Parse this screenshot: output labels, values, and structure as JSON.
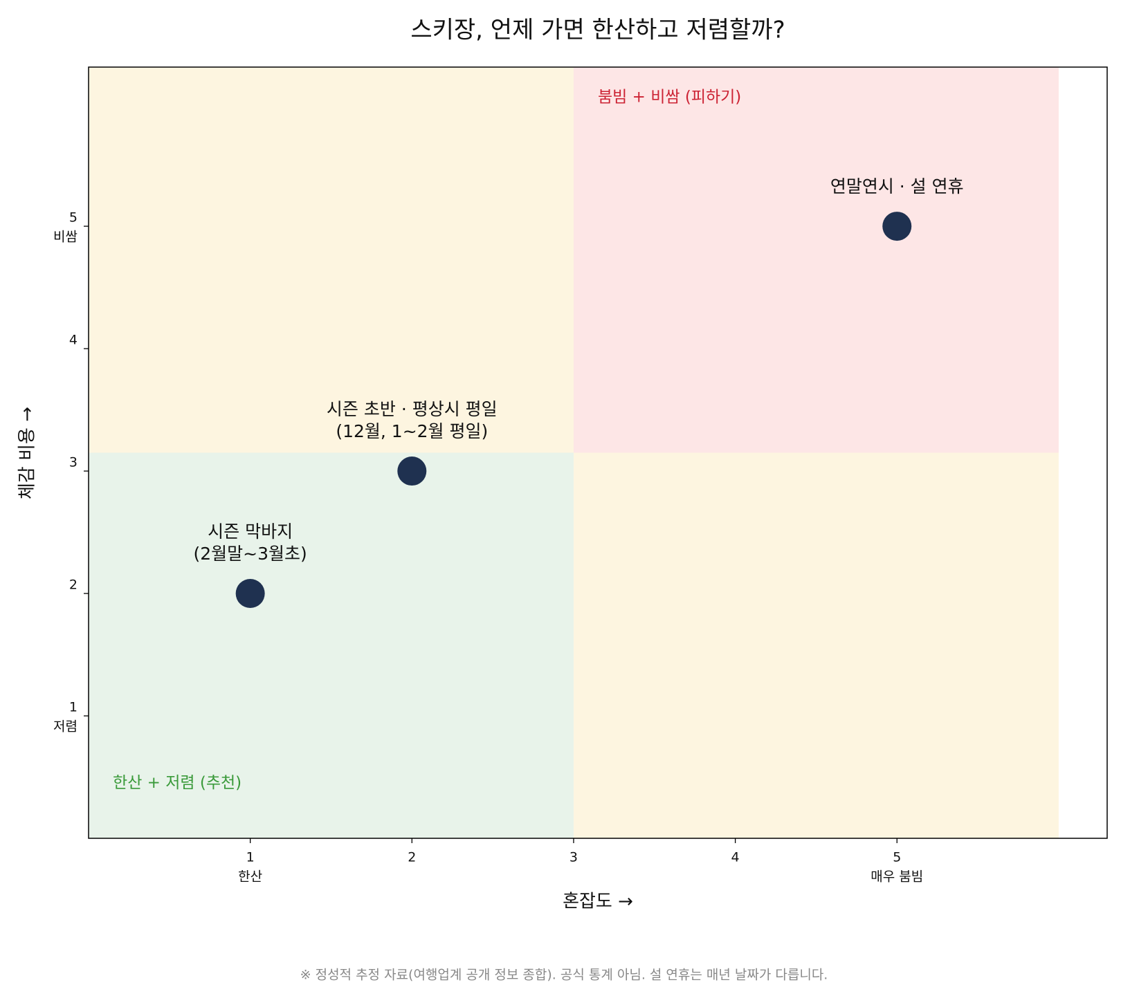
{
  "chart_data": {
    "type": "scatter",
    "title": "스키장, 언제 가면 한산하고 저렴할까?",
    "x_label": "혼잡도 →",
    "y_label": "체감 비용 →",
    "xlim": [
      0,
      6.3
    ],
    "ylim": [
      0,
      6.3
    ],
    "xticks": [
      1,
      2,
      3,
      4,
      5
    ],
    "yticks": [
      1,
      2,
      3,
      4,
      5
    ],
    "xtick_notes": [
      {
        "value": 1,
        "label": "한산"
      },
      {
        "value": 5,
        "label": "매우 붐빔"
      }
    ],
    "ytick_notes": [
      {
        "value": 1,
        "label": "저렴"
      },
      {
        "value": 5,
        "label": "비쌈"
      }
    ],
    "background": {
      "xlim": [
        0,
        6
      ],
      "ylim": [
        0,
        6.3
      ],
      "color": "#fdf5e0"
    },
    "quadrants": [
      {
        "label": "한산 + 저렴 (추천)",
        "xlim": [
          0,
          3
        ],
        "ylim": [
          0,
          3.15
        ],
        "color": "#e8f3ea",
        "text_color": "#3a9a3a"
      },
      {
        "label": "붐빔 + 비쌈 (피하기)",
        "xlim": [
          3,
          6
        ],
        "ylim": [
          3.15,
          6.3
        ],
        "color": "#fde6e6",
        "text_color": "#cc2233"
      }
    ],
    "series": [
      {
        "color": "#1f3150",
        "x": [
          1,
          2,
          5
        ],
        "values": [
          2,
          3,
          5
        ],
        "labels": [
          [
            "시즌 막바지",
            "(2월말~3월초)"
          ],
          [
            "시즌 초반 · 평상시 평일",
            "(12월, 1~2월 평일)"
          ],
          [
            "연말연시 · 설 연휴"
          ]
        ]
      }
    ],
    "footnote": "※ 정성적 추정 자료(여행업계 공개 정보 종합). 공식 통계 아님. 설 연휴는 매년 날짜가 다릅니다."
  }
}
